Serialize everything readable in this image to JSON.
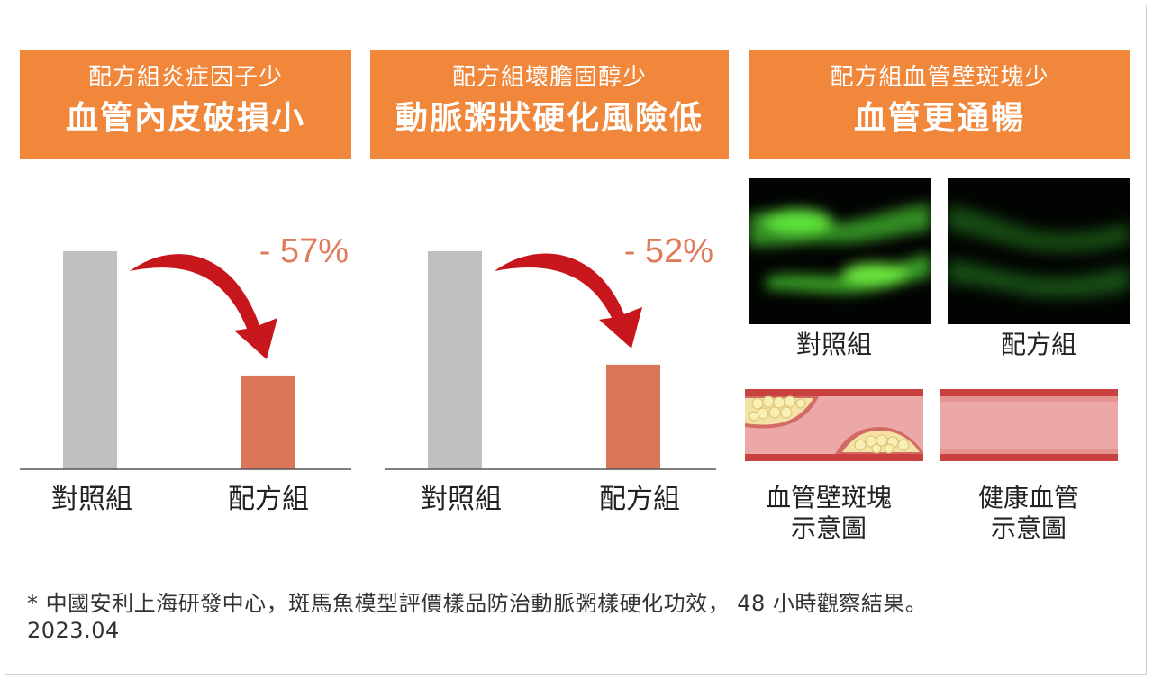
{
  "banners": [
    {
      "line1": "配方組炎症因子少",
      "line2": "血管內皮破損小"
    },
    {
      "line1": "配方組壞膽固醇少",
      "line2": "動脈粥狀硬化風險低"
    },
    {
      "line1": "配方組血管壁斑塊少",
      "line2": "血管更通暢"
    }
  ],
  "chart_data": [
    {
      "type": "bar",
      "categories": [
        "對照組",
        "配方組"
      ],
      "values": [
        100,
        43
      ],
      "annotation": "- 57%",
      "colors": [
        "#c0c0c0",
        "#dc7658"
      ],
      "grid": false,
      "legend": false
    },
    {
      "type": "bar",
      "categories": [
        "對照組",
        "配方組"
      ],
      "values": [
        100,
        48
      ],
      "annotation": "- 52%",
      "colors": [
        "#c0c0c0",
        "#dc7658"
      ],
      "grid": false,
      "legend": false
    }
  ],
  "images": {
    "micrographs": [
      {
        "label": "對照組",
        "glow": "strong"
      },
      {
        "label": "配方組",
        "glow": "weak"
      }
    ],
    "diagrams": [
      {
        "label_line1": "血管壁斑塊",
        "label_line2": "示意圖",
        "plaque": true
      },
      {
        "label_line1": "健康血管",
        "label_line2": "示意圖",
        "plaque": false
      }
    ]
  },
  "footnote": {
    "line1": "* 中國安利上海研發中心，斑馬魚模型評價樣品防治動脈粥樣硬化功效， 48 小時觀察結果。",
    "line2": "2023.04"
  },
  "colors": {
    "banner": "#f0873a",
    "control_bar": "#c0c0c0",
    "formula_bar": "#dc7658",
    "arrow": "#c8161d",
    "percent_text": "#e07a5a",
    "vessel": "#e9a0a0"
  }
}
